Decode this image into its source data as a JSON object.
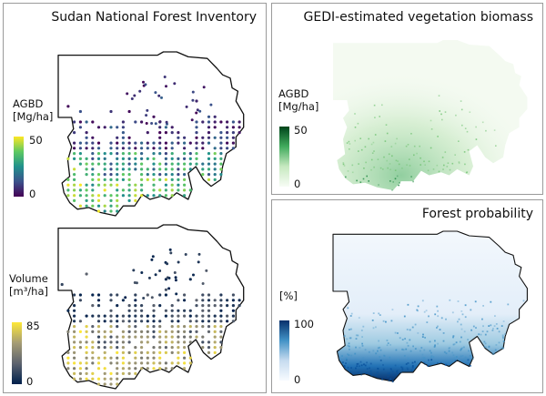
{
  "panels": {
    "nfi": {
      "title": "Sudan National Forest Inventory",
      "agbd_colorbar": {
        "label_line1": "AGBD",
        "label_line2": "[Mg/ha]",
        "max": "50",
        "min": "0",
        "colors": [
          "#fde725",
          "#5ec962",
          "#21918c",
          "#3b528b",
          "#440154"
        ]
      },
      "volume_colorbar": {
        "label_line1": "Volume",
        "label_line2": "[m³/ha]",
        "max": "85",
        "min": "0",
        "colors": [
          "#fee838",
          "#a59c74",
          "#5c626e",
          "#00204c"
        ]
      }
    },
    "gedi": {
      "title": "GEDI-estimated vegetation biomass",
      "colorbar": {
        "label_line1": "AGBD",
        "label_line2": "[Mg/ha]",
        "max": "50",
        "min": "0",
        "colors": [
          "#00441b",
          "#41ab5d",
          "#c7e9c0",
          "#f7fcf5"
        ]
      }
    },
    "forest": {
      "title": "Forest probability",
      "colorbar": {
        "label_line1": "[%]",
        "label_line2": "",
        "max": "100",
        "min": "0",
        "colors": [
          "#08306b",
          "#4292c6",
          "#c6dbef",
          "#f7fbff"
        ]
      }
    }
  }
}
